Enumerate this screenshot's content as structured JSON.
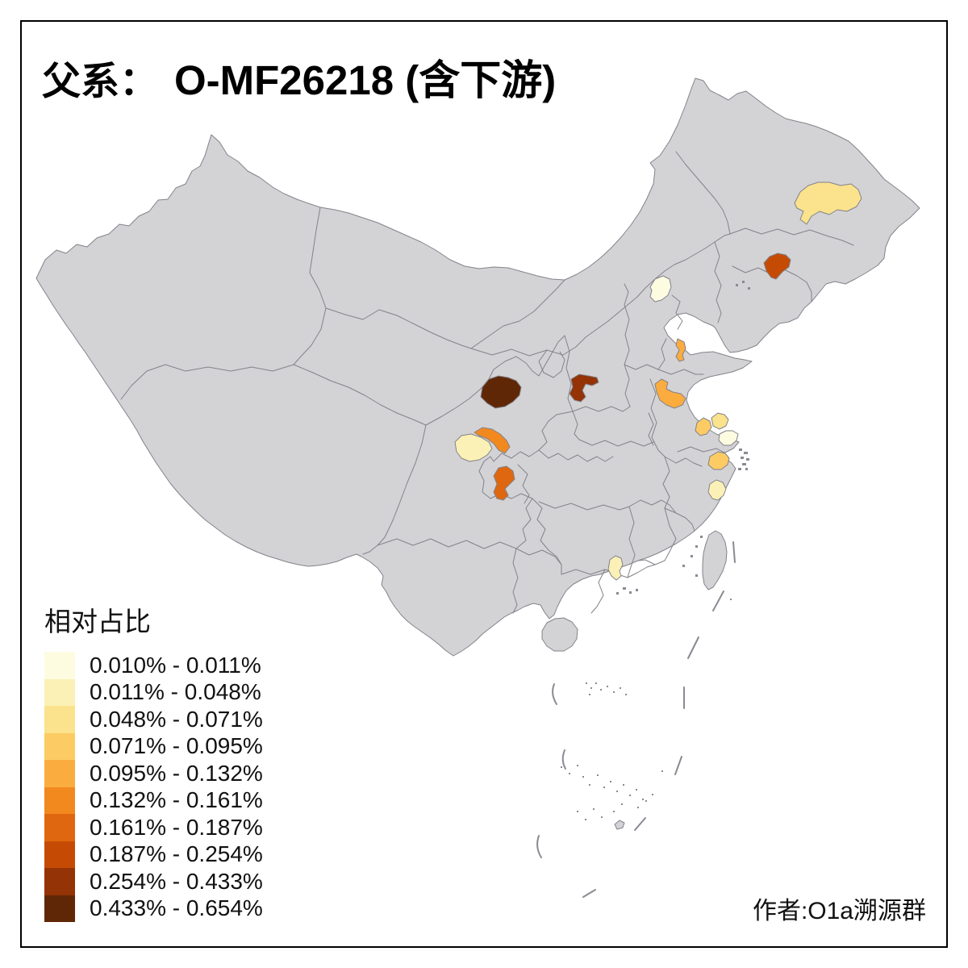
{
  "title": {
    "prefix": "父系：",
    "main": "O-MF26218 (含下游)"
  },
  "legend": {
    "title": "相对占比",
    "classes": [
      {
        "label": "0.010% - 0.011%",
        "color": "#FDFCE1"
      },
      {
        "label": "0.011% - 0.048%",
        "color": "#FBF1B6"
      },
      {
        "label": "0.048% - 0.071%",
        "color": "#FBE28C"
      },
      {
        "label": "0.071% - 0.095%",
        "color": "#FCCB63"
      },
      {
        "label": "0.095% - 0.132%",
        "color": "#FBAC3F"
      },
      {
        "label": "0.132% - 0.161%",
        "color": "#F2891F"
      },
      {
        "label": "0.161% - 0.187%",
        "color": "#DF670F"
      },
      {
        "label": "0.187% - 0.254%",
        "color": "#C54B05"
      },
      {
        "label": "0.254% - 0.433%",
        "color": "#943306"
      },
      {
        "label": "0.433% - 0.654%",
        "color": "#602706"
      }
    ]
  },
  "author": "作者:O1a溯源群",
  "map": {
    "base_fill": "#D3D3D6",
    "border_color": "#82828A",
    "highlighted_regions": [
      {
        "id": "northeast-heilongjiang-patch",
        "range": "0.048% - 0.071%",
        "color": "#FBE28C"
      },
      {
        "id": "northeast-jilin-patch",
        "range": "0.187% - 0.254%",
        "color": "#C54B05"
      },
      {
        "id": "beijing-patch",
        "range": "0.010% - 0.011%",
        "color": "#FDFCE1"
      },
      {
        "id": "shandong-patch",
        "range": "0.095% - 0.132%",
        "color": "#FBAC3F"
      },
      {
        "id": "shanxi-south-patch",
        "range": "0.254% - 0.433%",
        "color": "#943306"
      },
      {
        "id": "sichuan-chengdu-patch",
        "range": "0.433% - 0.654%",
        "color": "#602706"
      },
      {
        "id": "sichuan-south-pale-patch",
        "range": "0.011% - 0.048%",
        "color": "#FBF1B6"
      },
      {
        "id": "sichuan-south-orange-patch",
        "range": "0.132% - 0.161%",
        "color": "#F2891F"
      },
      {
        "id": "chongqing-south-patch",
        "range": "0.161% - 0.187%",
        "color": "#DF670F"
      },
      {
        "id": "jiangsu-north-patch",
        "range": "0.095% - 0.132%",
        "color": "#FBAC3F"
      },
      {
        "id": "jiangsu-mid-patch",
        "range": "0.071% - 0.095%",
        "color": "#FCCB63"
      },
      {
        "id": "jiangsu-east-patch",
        "range": "0.048% - 0.071%",
        "color": "#FBE28C"
      },
      {
        "id": "shanghai-area-patch",
        "range": "0.010% - 0.011%",
        "color": "#FDFCE1"
      },
      {
        "id": "hangzhou-patch",
        "range": "0.071% - 0.095%",
        "color": "#FCCB63"
      },
      {
        "id": "zhejiang-coast-patch",
        "range": "0.011% - 0.048%",
        "color": "#FBF1B6"
      },
      {
        "id": "guangdong-patch",
        "range": "0.011% - 0.048%",
        "color": "#FBF1B6"
      }
    ]
  }
}
